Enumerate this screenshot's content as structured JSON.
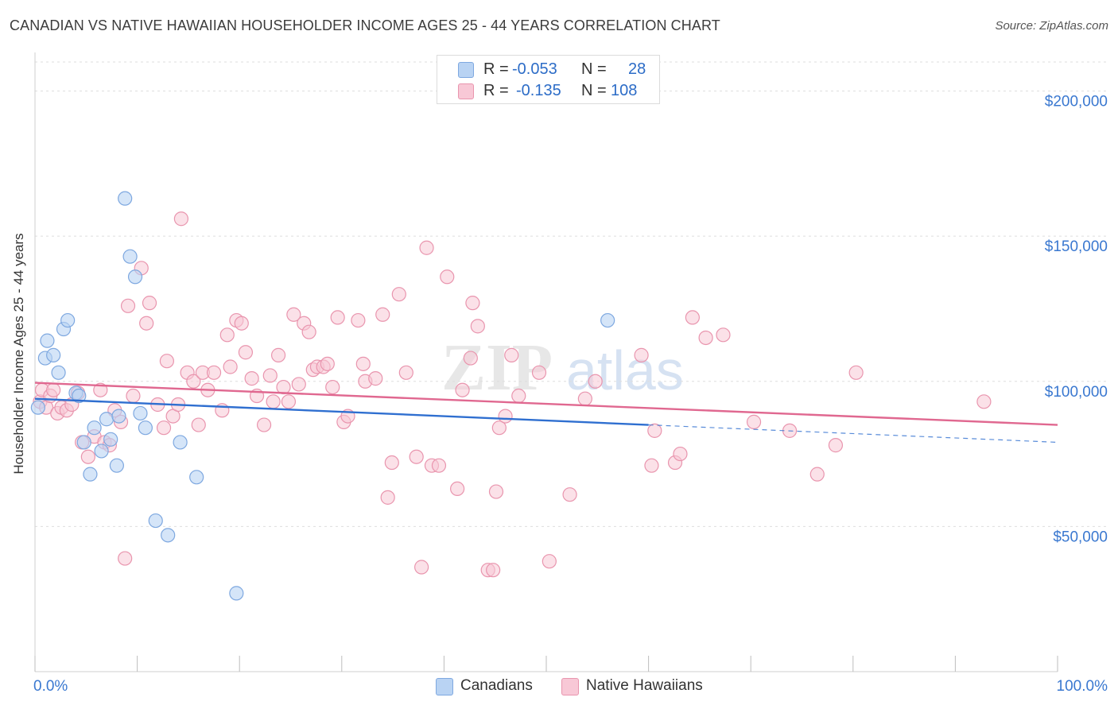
{
  "header": {
    "title": "CANADIAN VS NATIVE HAWAIIAN HOUSEHOLDER INCOME AGES 25 - 44 YEARS CORRELATION CHART",
    "source": "Source: ZipAtlas.com"
  },
  "legend_box": {
    "rows": [
      {
        "r_label": "R =",
        "r_value": "-0.053",
        "n_label": "N =",
        "n_value": "28"
      },
      {
        "r_label": "R =",
        "r_value": "-0.135",
        "n_label": "N =",
        "n_value": "108"
      }
    ]
  },
  "watermark": {
    "zip": "ZIP",
    "atlas": "atlas"
  },
  "colors": {
    "canadians_fill": "#b9d3f3",
    "canadians_stroke": "#7ea8e0",
    "canadians_line": "#2f6fd0",
    "hawaiians_fill": "#f8c8d6",
    "hawaiians_stroke": "#e995ae",
    "hawaiians_line": "#e06890",
    "tick_label": "#3a78d0"
  },
  "chart_data": {
    "type": "scatter",
    "title": "CANADIAN VS NATIVE HAWAIIAN HOUSEHOLDER INCOME AGES 25 - 44 YEARS CORRELATION CHART",
    "xlabel": "",
    "ylabel": "Householder Income Ages 25 - 44 years",
    "xlim": [
      0,
      100
    ],
    "ylim": [
      0,
      210000
    ],
    "x_tick_labels": [
      "0.0%",
      "100.0%"
    ],
    "y_ticks": [
      50000,
      100000,
      150000,
      200000
    ],
    "y_tick_labels": [
      "$50,000",
      "$100,000",
      "$150,000",
      "$200,000"
    ],
    "grid": true,
    "legend": [
      "Canadians",
      "Native Hawaiians"
    ],
    "legend_position": "bottom",
    "series": [
      {
        "name": "Canadians",
        "r": -0.053,
        "n": 28,
        "trend": {
          "x0": 0,
          "y0": 94000,
          "x1": 60,
          "y1": 85000,
          "dashed_to_x": 100,
          "dashed_to_y": 79000
        },
        "points": [
          [
            0.3,
            91000
          ],
          [
            1,
            108000
          ],
          [
            1.2,
            114000
          ],
          [
            1.8,
            109000
          ],
          [
            2.3,
            103000
          ],
          [
            2.8,
            118000
          ],
          [
            3.2,
            121000
          ],
          [
            4,
            96000
          ],
          [
            4.3,
            95000
          ],
          [
            4.8,
            79000
          ],
          [
            5.4,
            68000
          ],
          [
            5.8,
            84000
          ],
          [
            6.5,
            76000
          ],
          [
            7,
            87000
          ],
          [
            7.4,
            80000
          ],
          [
            8,
            71000
          ],
          [
            8.2,
            88000
          ],
          [
            8.8,
            163000
          ],
          [
            9.3,
            143000
          ],
          [
            9.8,
            136000
          ],
          [
            10.3,
            89000
          ],
          [
            10.8,
            84000
          ],
          [
            11.8,
            52000
          ],
          [
            13,
            47000
          ],
          [
            14.2,
            79000
          ],
          [
            15.8,
            67000
          ],
          [
            19.7,
            27000
          ],
          [
            56,
            121000
          ]
        ]
      },
      {
        "name": "Native Hawaiians",
        "r": -0.135,
        "n": 108,
        "trend": {
          "x0": 0,
          "y0": 99500,
          "x1": 100,
          "y1": 85000
        },
        "points": [
          [
            0.5,
            93000
          ],
          [
            0.7,
            97000
          ],
          [
            1.1,
            91000
          ],
          [
            1.5,
            95000
          ],
          [
            1.8,
            97000
          ],
          [
            2.2,
            89000
          ],
          [
            2.6,
            91000
          ],
          [
            3.1,
            90000
          ],
          [
            3.6,
            92000
          ],
          [
            4.2,
            96000
          ],
          [
            4.6,
            79000
          ],
          [
            5.2,
            74000
          ],
          [
            5.8,
            81000
          ],
          [
            6.4,
            97000
          ],
          [
            6.8,
            79000
          ],
          [
            7.3,
            78000
          ],
          [
            7.8,
            90000
          ],
          [
            8.4,
            86000
          ],
          [
            8.8,
            39000
          ],
          [
            9.1,
            126000
          ],
          [
            9.6,
            95000
          ],
          [
            10.4,
            139000
          ],
          [
            10.9,
            120000
          ],
          [
            11.2,
            127000
          ],
          [
            12,
            92000
          ],
          [
            12.6,
            84000
          ],
          [
            12.9,
            107000
          ],
          [
            13.5,
            88000
          ],
          [
            14,
            92000
          ],
          [
            14.3,
            156000
          ],
          [
            14.9,
            103000
          ],
          [
            15.5,
            100000
          ],
          [
            16,
            85000
          ],
          [
            16.4,
            103000
          ],
          [
            16.9,
            97000
          ],
          [
            17.5,
            103000
          ],
          [
            18.3,
            90000
          ],
          [
            18.8,
            116000
          ],
          [
            19.1,
            105000
          ],
          [
            19.7,
            121000
          ],
          [
            20.2,
            120000
          ],
          [
            20.6,
            110000
          ],
          [
            21.2,
            101000
          ],
          [
            21.7,
            95000
          ],
          [
            22.4,
            85000
          ],
          [
            23,
            102000
          ],
          [
            23.3,
            93000
          ],
          [
            23.8,
            109000
          ],
          [
            24.3,
            98000
          ],
          [
            24.8,
            93000
          ],
          [
            25.3,
            123000
          ],
          [
            25.8,
            99000
          ],
          [
            26.3,
            120000
          ],
          [
            26.8,
            117000
          ],
          [
            27.2,
            104000
          ],
          [
            27.6,
            105000
          ],
          [
            28.2,
            105000
          ],
          [
            28.6,
            106000
          ],
          [
            29.1,
            98000
          ],
          [
            29.6,
            122000
          ],
          [
            30.2,
            86000
          ],
          [
            30.6,
            88000
          ],
          [
            31.6,
            121000
          ],
          [
            32.1,
            106000
          ],
          [
            32.3,
            100000
          ],
          [
            33.3,
            101000
          ],
          [
            34,
            123000
          ],
          [
            34.5,
            60000
          ],
          [
            34.9,
            72000
          ],
          [
            35.6,
            130000
          ],
          [
            36.3,
            103000
          ],
          [
            37.3,
            74000
          ],
          [
            37.8,
            36000
          ],
          [
            38.3,
            146000
          ],
          [
            38.8,
            71000
          ],
          [
            39.5,
            71000
          ],
          [
            40.3,
            136000
          ],
          [
            41.3,
            63000
          ],
          [
            41.8,
            97000
          ],
          [
            42.6,
            108000
          ],
          [
            42.8,
            127000
          ],
          [
            43.3,
            119000
          ],
          [
            44.3,
            35000
          ],
          [
            44.8,
            35000
          ],
          [
            45.1,
            62000
          ],
          [
            45.4,
            84000
          ],
          [
            46,
            88000
          ],
          [
            46.6,
            109000
          ],
          [
            47.3,
            95000
          ],
          [
            49.3,
            103000
          ],
          [
            50.3,
            38000
          ],
          [
            52.3,
            61000
          ],
          [
            53.8,
            94000
          ],
          [
            54.8,
            100000
          ],
          [
            59.3,
            109000
          ],
          [
            60.3,
            71000
          ],
          [
            60.6,
            83000
          ],
          [
            62.6,
            72000
          ],
          [
            63.1,
            75000
          ],
          [
            64.3,
            122000
          ],
          [
            65.6,
            115000
          ],
          [
            67.3,
            116000
          ],
          [
            70.3,
            86000
          ],
          [
            73.8,
            83000
          ],
          [
            76.5,
            68000
          ],
          [
            78.3,
            78000
          ],
          [
            80.3,
            103000
          ],
          [
            92.8,
            93000
          ]
        ]
      }
    ]
  }
}
